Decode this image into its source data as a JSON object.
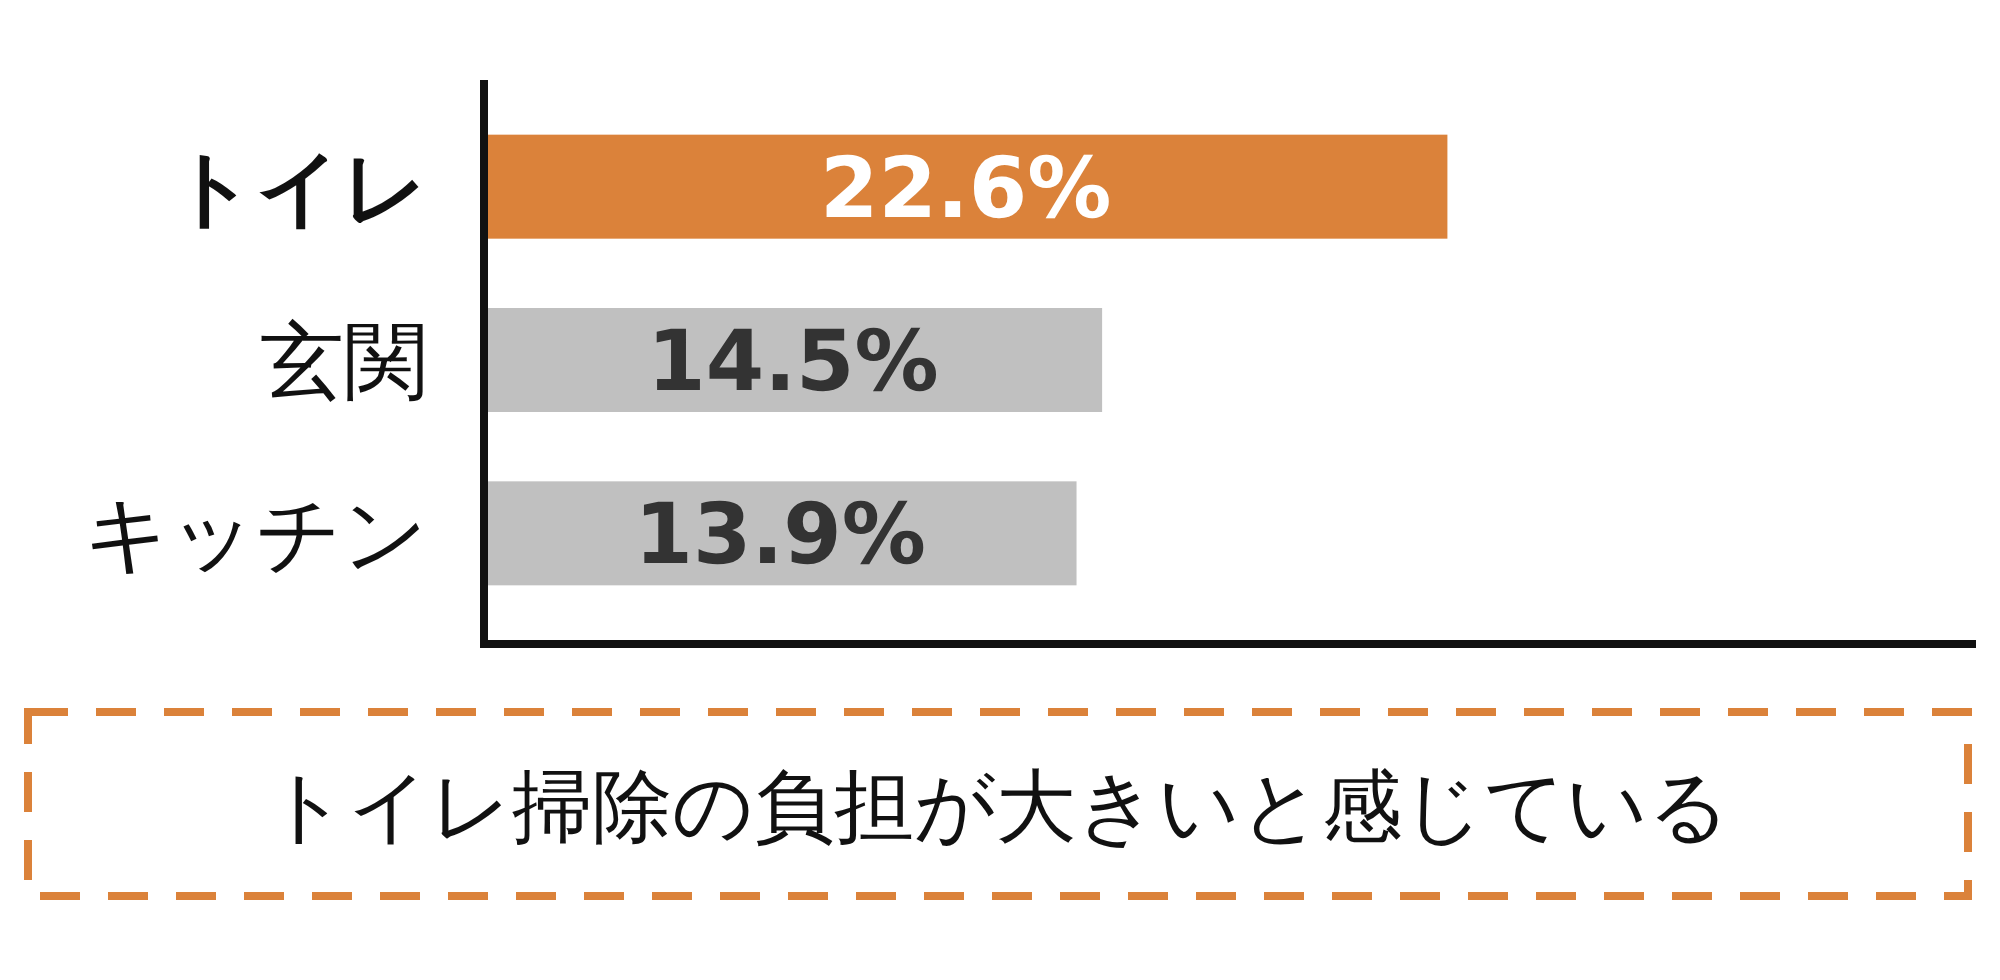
{
  "chart_data": {
    "type": "bar",
    "orientation": "horizontal",
    "categories": [
      "トイレ",
      "玄関",
      "キッチン"
    ],
    "values": [
      22.6,
      14.5,
      13.9
    ],
    "value_labels": [
      "22.6%",
      "14.5%",
      "13.9%"
    ],
    "colors": [
      "#db823a",
      "#c0c0c0",
      "#c0c0c0"
    ],
    "xlim": [
      0,
      35
    ],
    "tick_labels": "y",
    "annotations": [
      "トイレ掃除の負担が大きいと感じている"
    ]
  }
}
